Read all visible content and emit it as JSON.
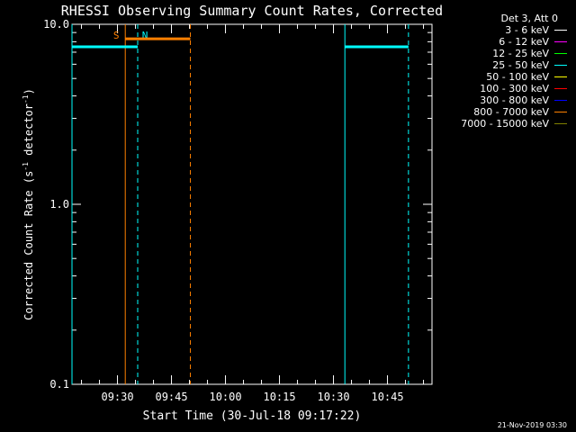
{
  "chart_data": {
    "type": "line",
    "title": "RHESSI Observing Summary Count Rates, Corrected",
    "xlabel": "Start Time (30-Jul-18 09:17:22)",
    "ylabel_main": "Corrected Count Rate (s",
    "ylabel_exp1": "-1",
    "ylabel_mid": " detector",
    "ylabel_exp2": "-1",
    "ylabel_end": ")",
    "yscale": "log",
    "ylim": [
      0.1,
      10.0
    ],
    "xlim": [
      "09:17:22",
      "10:57:22"
    ],
    "x_ticks": [
      "09:30",
      "09:45",
      "10:00",
      "10:15",
      "10:30",
      "10:45"
    ],
    "y_ticks": [
      "0.1",
      "1.0",
      "10.0"
    ],
    "legend_header": "Det 3, Att 0",
    "legend": [
      {
        "label": "3 - 6 keV",
        "color": "#ffffff"
      },
      {
        "label": "6 - 12 keV",
        "color": "#ff00ff"
      },
      {
        "label": "12 - 25 keV",
        "color": "#00ff00"
      },
      {
        "label": "25 - 50 keV",
        "color": "#00ffff"
      },
      {
        "label": "50 - 100 keV",
        "color": "#ffff00"
      },
      {
        "label": "100 - 300 keV",
        "color": "#ff0000"
      },
      {
        "label": "300 - 800 keV",
        "color": "#0000ff"
      },
      {
        "label": "800 - 7000 keV",
        "color": "#ff8000"
      },
      {
        "label": "7000 - 15000 keV",
        "color": "#808000"
      }
    ],
    "series": [
      {
        "color": "#00ffff",
        "segments": [
          {
            "x": [
              "09:17:22",
              "09:35:37"
            ],
            "y": 7.5
          },
          {
            "x": [
              "10:33:10",
              "10:50:50"
            ],
            "y": 7.5
          }
        ]
      },
      {
        "color": "#ff8000",
        "segments": [
          {
            "x": [
              "09:32:10",
              "09:50:15"
            ],
            "y": 8.3
          }
        ]
      }
    ],
    "markers": [
      {
        "label": "S",
        "x": "09:32:10",
        "color": "#ff8000",
        "style": "solid"
      },
      {
        "label": "",
        "x": "09:50:15",
        "color": "#ff8000",
        "style": "dashed"
      },
      {
        "label": "N",
        "x": "09:35:37",
        "color": "#00ffff",
        "style": "dashed"
      },
      {
        "label": "",
        "x": "09:17:22",
        "color": "#00ffff",
        "style": "solid"
      },
      {
        "label": "",
        "x": "10:33:10",
        "color": "#00ffff",
        "style": "solid"
      },
      {
        "label": "",
        "x": "10:50:50",
        "color": "#00ffff",
        "style": "dashed"
      }
    ]
  },
  "footer": "21-Nov-2019 03:30"
}
